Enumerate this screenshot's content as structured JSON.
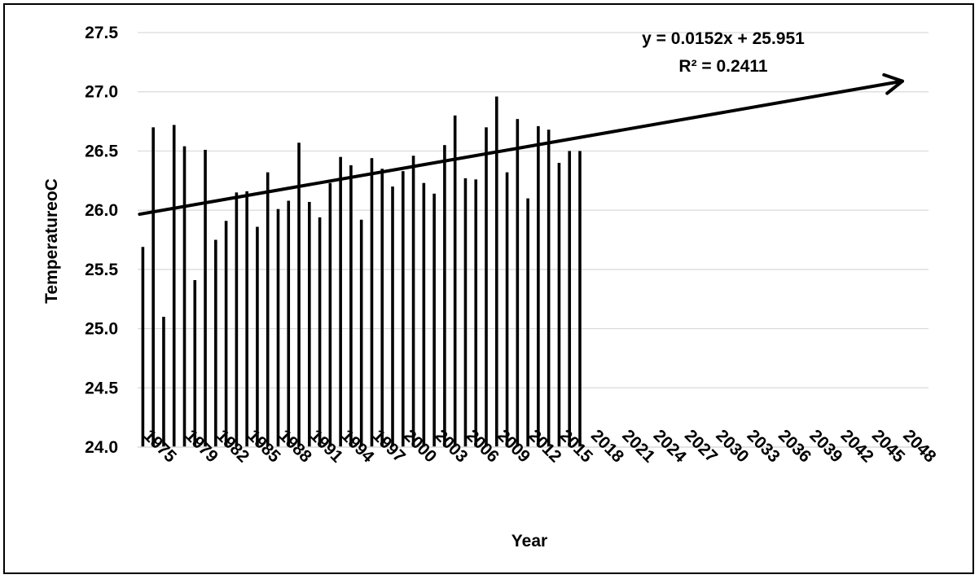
{
  "chart_data": {
    "type": "bar",
    "title": "",
    "xlabel": "Year",
    "ylabel": "TemperatureoC",
    "ylim": [
      24.0,
      27.5
    ],
    "y_ticks": [
      "24.0",
      "24.5",
      "25.0",
      "25.5",
      "26.0",
      "26.5",
      "27.0",
      "27.5"
    ],
    "x_tick_labels": [
      "1975",
      "1979",
      "1982",
      "1985",
      "1988",
      "1991",
      "1994",
      "1997",
      "2000",
      "2003",
      "2006",
      "2009",
      "2012",
      "2015",
      "2018",
      "2021",
      "2024",
      "2027",
      "2030",
      "2033",
      "2036",
      "2039",
      "2042",
      "2045",
      "2048"
    ],
    "x_range": [
      1974,
      2049
    ],
    "grid": "horizontal",
    "legend": "none",
    "series": [
      {
        "x": [
          1974,
          1975,
          1976,
          1977,
          1978,
          1979,
          1980,
          1981,
          1982,
          1983,
          1984,
          1985,
          1986,
          1987,
          1988,
          1989,
          1990,
          1991,
          1992,
          1993,
          1994,
          1995,
          1996,
          1997,
          1998,
          1999,
          2000,
          2001,
          2002,
          2003,
          2004,
          2005,
          2006,
          2007,
          2008,
          2009,
          2010,
          2011,
          2012,
          2013,
          2014,
          2015,
          2016
        ],
        "values": [
          25.69,
          26.7,
          25.1,
          26.72,
          26.54,
          25.41,
          26.51,
          25.75,
          25.91,
          26.15,
          26.16,
          25.86,
          26.32,
          26.01,
          26.08,
          26.57,
          26.07,
          25.94,
          26.23,
          26.45,
          26.38,
          25.92,
          26.44,
          26.35,
          26.2,
          26.33,
          26.46,
          26.23,
          26.14,
          26.55,
          26.8,
          26.27,
          26.26,
          26.7,
          26.96,
          26.32,
          26.77,
          26.1,
          26.71,
          26.68,
          26.4,
          26.5,
          26.5
        ],
        "color": "#000000"
      }
    ],
    "trendline": {
      "slope": 0.0152,
      "intercept": 25.951,
      "start_value": 25.966,
      "end_value": 27.09,
      "arrow": true,
      "equation_line1": "y = 0.0152x + 25.951",
      "equation_line2": "R² = 0.2411",
      "color": "#000000"
    }
  }
}
